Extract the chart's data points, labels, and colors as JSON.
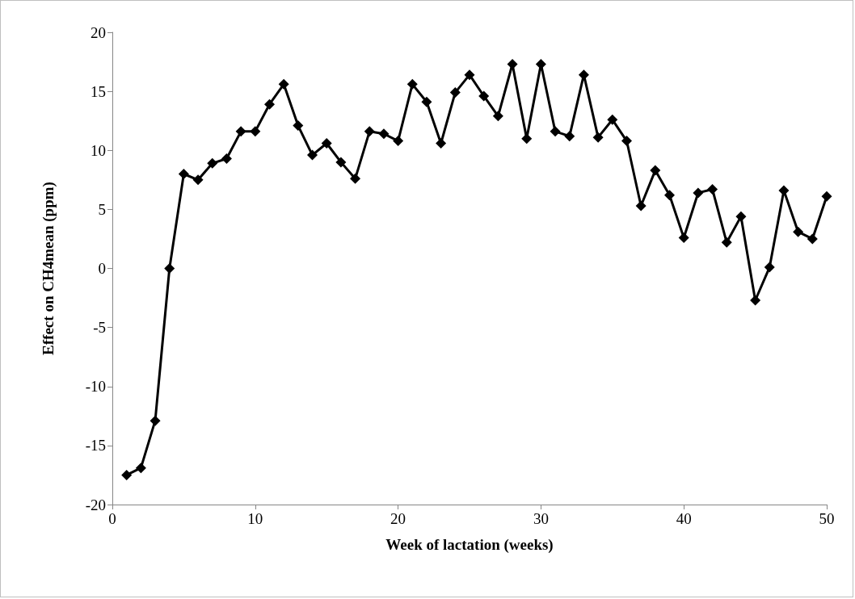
{
  "chart_data": {
    "type": "line",
    "xlabel": "Week of lactation (weeks)",
    "ylabel": "Effect on CH4mean (ppm)",
    "x": [
      1,
      2,
      3,
      4,
      5,
      6,
      7,
      8,
      9,
      10,
      11,
      12,
      13,
      14,
      15,
      16,
      17,
      18,
      19,
      20,
      21,
      22,
      23,
      24,
      25,
      26,
      27,
      28,
      29,
      30,
      31,
      32,
      33,
      34,
      35,
      36,
      37,
      38,
      39,
      40,
      41,
      42,
      43,
      44,
      45,
      46,
      47,
      48,
      49,
      50
    ],
    "series": [
      {
        "color": "#000000",
        "values": [
          -17.5,
          -16.9,
          -12.9,
          0,
          8.0,
          7.5,
          8.9,
          9.3,
          11.6,
          11.6,
          13.9,
          15.6,
          12.1,
          9.6,
          10.6,
          9.0,
          7.6,
          11.6,
          11.4,
          10.8,
          15.6,
          14.1,
          10.6,
          14.9,
          16.4,
          14.6,
          12.9,
          17.3,
          11.0,
          17.3,
          11.6,
          11.2,
          16.4,
          11.1,
          12.6,
          10.8,
          5.3,
          8.3,
          6.2,
          2.6,
          6.4,
          6.7,
          2.2,
          4.4,
          -2.7,
          0.1,
          6.6,
          3.1,
          2.5,
          6.1
        ]
      }
    ],
    "xlim": [
      0,
      50
    ],
    "xticks": [
      0,
      10,
      20,
      30,
      40,
      50
    ],
    "ylim": [
      -20,
      20
    ],
    "yticks": [
      -20,
      -15,
      -10,
      -5,
      0,
      5,
      10,
      15,
      20
    ],
    "grid": false,
    "marker": "diamond",
    "line_style": "solid"
  }
}
